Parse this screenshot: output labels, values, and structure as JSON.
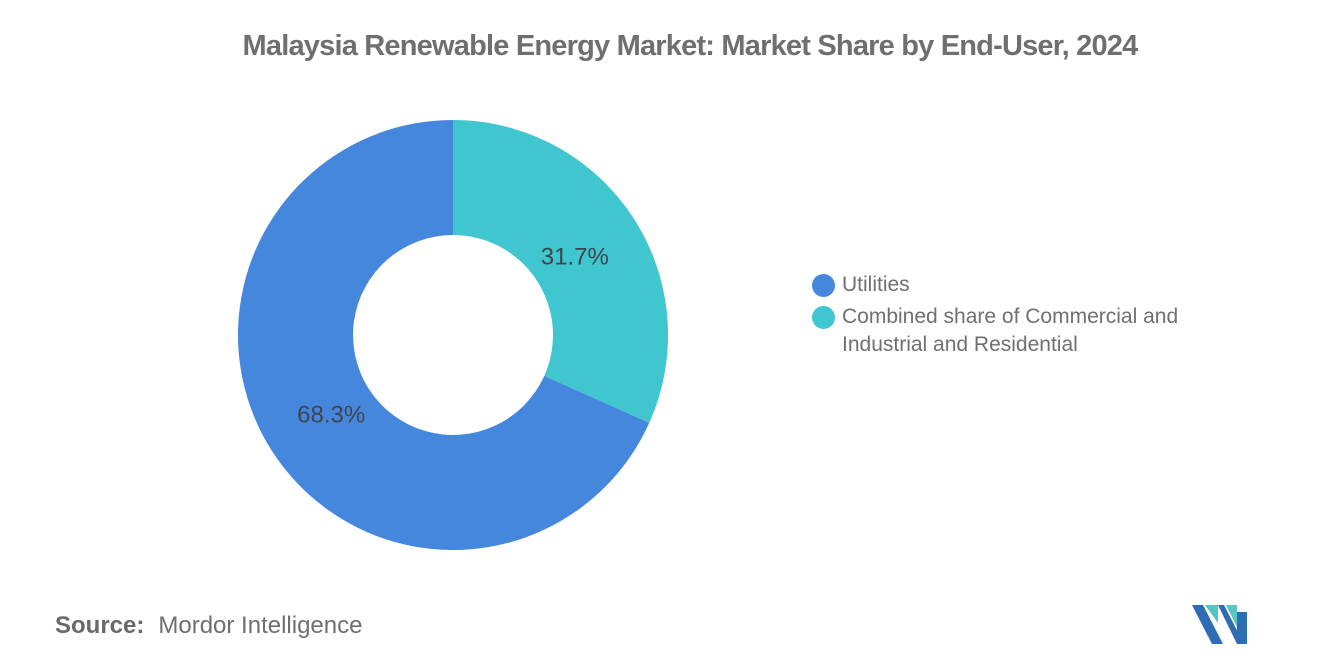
{
  "title": "Malaysia Renewable Energy Market: Market Share by End-User, 2024",
  "chart_data": {
    "type": "pie",
    "subtype": "donut",
    "title": "Malaysia Renewable Energy Market: Market Share by End-User, 2024",
    "series": [
      {
        "name": "Utilities",
        "value": 68.3,
        "label": "68.3%",
        "color": "#4687DE"
      },
      {
        "name": "Combined share of Commercial and Industrial and Residential",
        "value": 31.7,
        "label": "31.7%",
        "color": "#3FC6CF"
      }
    ],
    "start_angle_deg": 0,
    "direction": "second-slice-clockwise-from-top",
    "inner_radius_ratio": 0.465,
    "label_radius_ratio": 0.675,
    "data_label_color": "#3F454C",
    "legend_position": "right",
    "background": "#ffffff"
  },
  "legend": {
    "items": [
      {
        "label": "Utilities",
        "color": "#4687DE"
      },
      {
        "label": "Combined share of Commercial and\nIndustrial and Residential",
        "color": "#3FC6CF"
      }
    ]
  },
  "source": {
    "label": "Source:",
    "value": "Mordor Intelligence"
  },
  "logo": {
    "name": "mordor-intelligence-logo",
    "blue": "#2C6DB3",
    "teal": "#55C6C0"
  }
}
